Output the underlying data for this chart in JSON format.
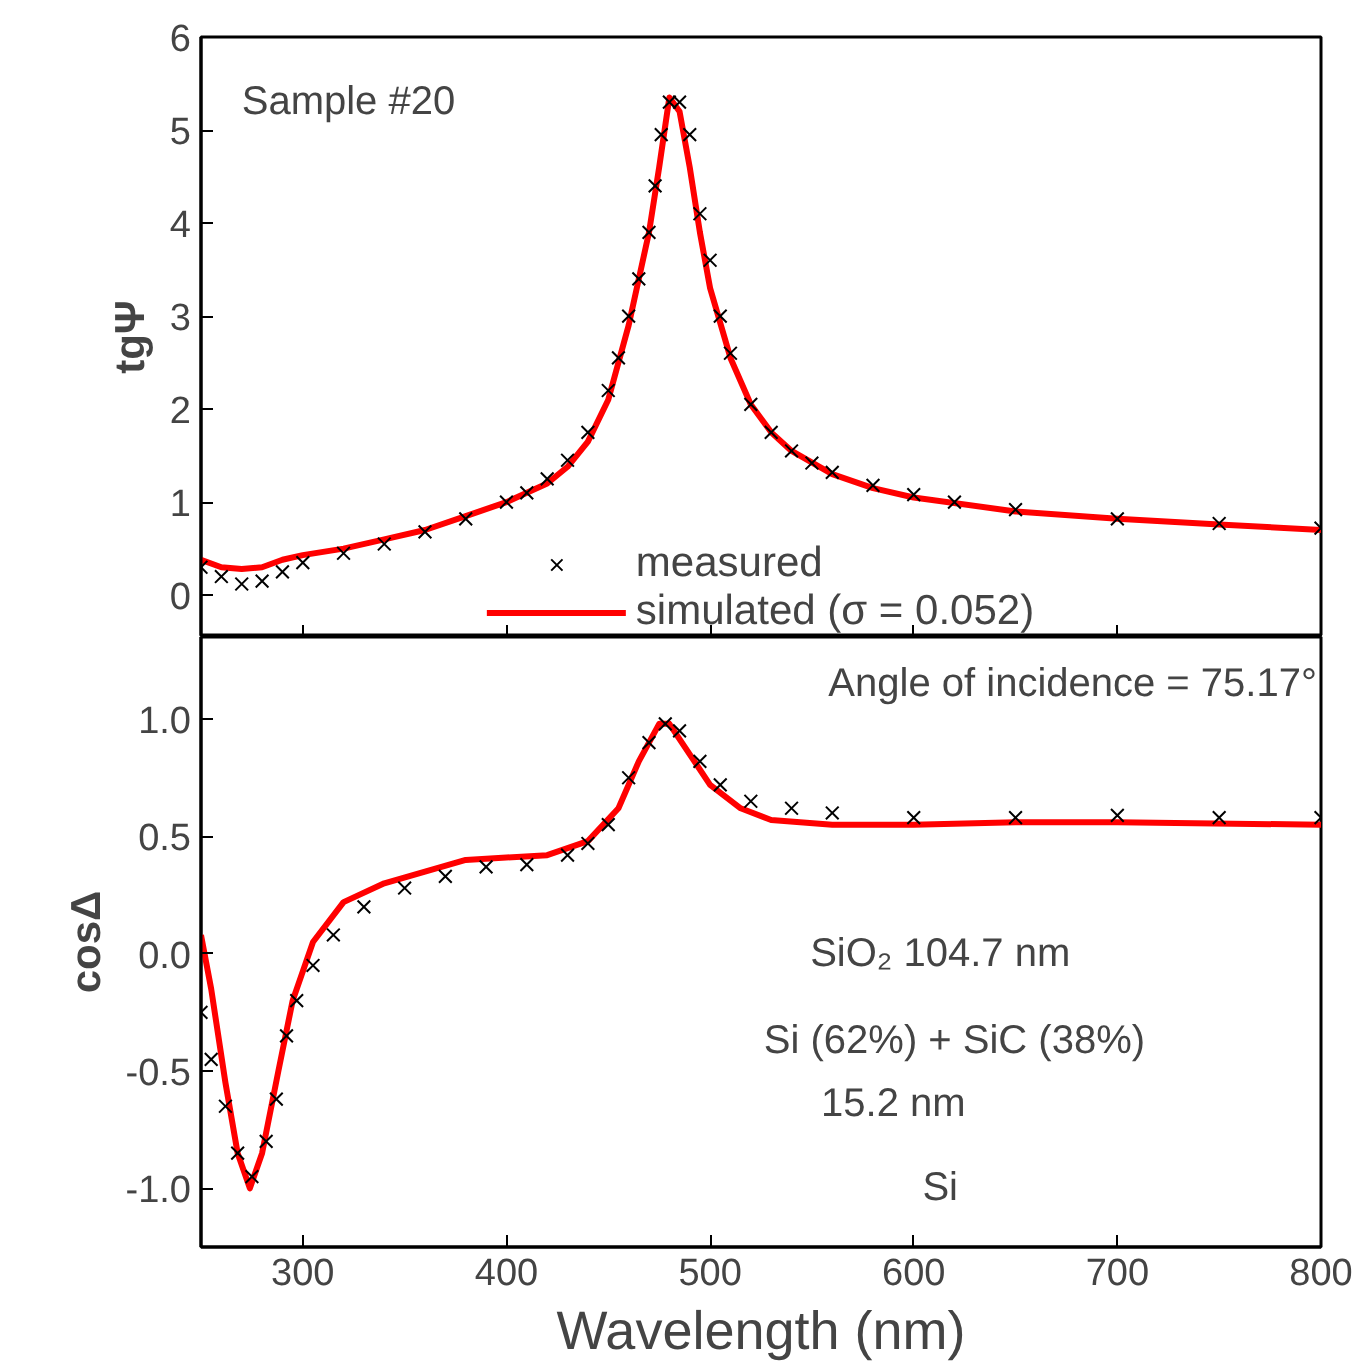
{
  "chart_data": [
    {
      "type": "line",
      "ylabel": "tgΨ",
      "xlim": [
        250,
        800
      ],
      "xticks": [
        300,
        400,
        500,
        600,
        700,
        800
      ],
      "ylim": [
        -0.45,
        6
      ],
      "yticks": [
        0,
        1,
        2,
        3,
        4,
        5,
        6
      ],
      "tick_labels": "y",
      "grid": false,
      "legend": "bottom",
      "annotations": [
        "Sample #20"
      ],
      "series": [
        {
          "name": "measured",
          "type": "scatter",
          "marker": "cross",
          "color": "#000000",
          "x": [
            250,
            260,
            270,
            280,
            290,
            300,
            320,
            340,
            360,
            380,
            400,
            410,
            420,
            430,
            440,
            450,
            455,
            460,
            465,
            470,
            473,
            476,
            480,
            485,
            490,
            495,
            500,
            505,
            510,
            520,
            530,
            540,
            550,
            560,
            580,
            600,
            620,
            650,
            700,
            750,
            800
          ],
          "values": [
            0.3,
            0.2,
            0.12,
            0.15,
            0.25,
            0.35,
            0.45,
            0.55,
            0.68,
            0.82,
            1.0,
            1.1,
            1.25,
            1.45,
            1.75,
            2.2,
            2.55,
            3.0,
            3.4,
            3.9,
            4.4,
            4.95,
            5.3,
            5.3,
            4.95,
            4.1,
            3.6,
            3.0,
            2.6,
            2.05,
            1.75,
            1.55,
            1.42,
            1.32,
            1.18,
            1.08,
            1.0,
            0.92,
            0.82,
            0.77,
            0.72
          ]
        },
        {
          "name": "simulated (σ = 0.052)",
          "line_style": "solid",
          "color": "#ff0000",
          "x": [
            250,
            260,
            270,
            280,
            290,
            300,
            320,
            340,
            360,
            380,
            400,
            410,
            420,
            430,
            440,
            450,
            460,
            470,
            475,
            480,
            485,
            490,
            495,
            500,
            510,
            520,
            530,
            540,
            560,
            580,
            600,
            650,
            700,
            750,
            800
          ],
          "values": [
            0.38,
            0.3,
            0.28,
            0.3,
            0.38,
            0.43,
            0.5,
            0.6,
            0.7,
            0.85,
            1.0,
            1.1,
            1.2,
            1.38,
            1.65,
            2.1,
            2.9,
            3.9,
            4.6,
            5.35,
            5.2,
            4.6,
            3.9,
            3.3,
            2.55,
            2.05,
            1.75,
            1.55,
            1.3,
            1.15,
            1.05,
            0.9,
            0.82,
            0.76,
            0.7
          ]
        }
      ]
    },
    {
      "type": "line",
      "xlabel": "Wavelength (nm)",
      "ylabel": "cosΔ",
      "xlim": [
        250,
        800
      ],
      "xticks": [
        300,
        400,
        500,
        600,
        700,
        800
      ],
      "ylim": [
        -1.25,
        1.35
      ],
      "yticks": [
        {
          "value": -1,
          "label": "-1.0"
        },
        {
          "value": -0.5,
          "label": "-0.5"
        },
        {
          "value": 0,
          "label": "0.0"
        },
        0.5,
        {
          "value": 1,
          "label": "1.0"
        }
      ],
      "grid": false,
      "annotations": [
        "Angle of incidence = 75.17°",
        "SiO₂ 104.7 nm",
        "Si (62%) + SiC (38%)",
        "15.2 nm",
        "Si"
      ],
      "series": [
        {
          "type": "scatter",
          "marker": "cross",
          "color": "#000000",
          "x": [
            250,
            255,
            262,
            268,
            275,
            282,
            287,
            292,
            297,
            305,
            315,
            330,
            350,
            370,
            390,
            410,
            430,
            440,
            450,
            460,
            470,
            478,
            485,
            495,
            505,
            520,
            540,
            560,
            600,
            650,
            700,
            750,
            800
          ],
          "values": [
            -0.25,
            -0.45,
            -0.65,
            -0.85,
            -0.95,
            -0.8,
            -0.62,
            -0.35,
            -0.2,
            -0.05,
            0.08,
            0.2,
            0.28,
            0.33,
            0.37,
            0.38,
            0.42,
            0.47,
            0.55,
            0.75,
            0.9,
            0.98,
            0.95,
            0.82,
            0.72,
            0.65,
            0.62,
            0.6,
            0.58,
            0.58,
            0.59,
            0.58,
            0.58
          ]
        },
        {
          "line_style": "solid",
          "color": "#ff0000",
          "x": [
            250,
            255,
            262,
            268,
            274,
            280,
            288,
            295,
            305,
            320,
            340,
            360,
            380,
            400,
            420,
            440,
            455,
            465,
            475,
            480,
            490,
            500,
            515,
            530,
            560,
            600,
            650,
            700,
            800
          ],
          "values": [
            0.08,
            -0.15,
            -0.55,
            -0.85,
            -1.0,
            -0.85,
            -0.5,
            -0.2,
            0.05,
            0.22,
            0.3,
            0.35,
            0.4,
            0.41,
            0.42,
            0.48,
            0.62,
            0.82,
            0.98,
            0.98,
            0.85,
            0.72,
            0.62,
            0.57,
            0.55,
            0.55,
            0.56,
            0.56,
            0.55
          ]
        }
      ]
    }
  ]
}
